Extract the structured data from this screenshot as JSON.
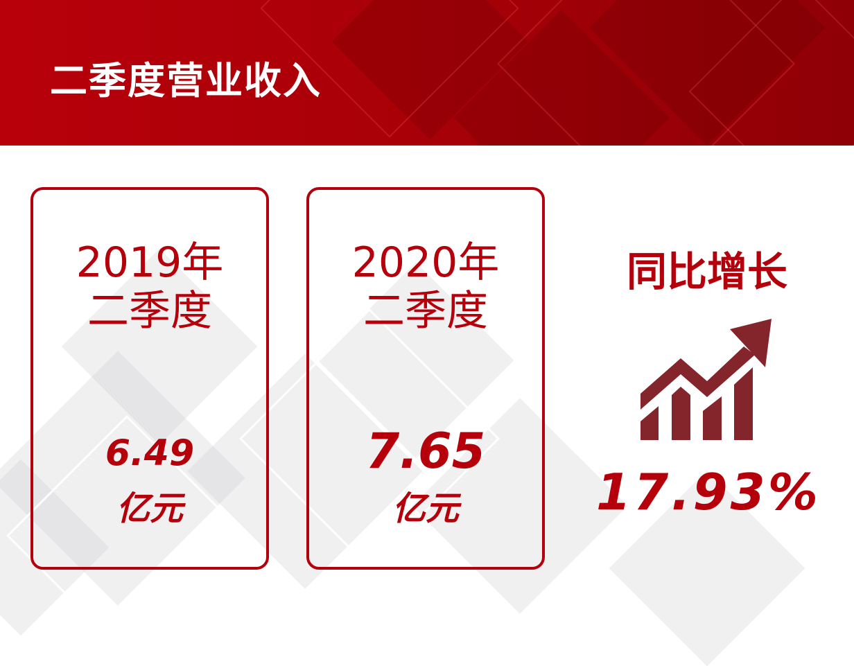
{
  "header": {
    "title": "二季度营业收入"
  },
  "cards": [
    {
      "year": "2019年",
      "quarter": "二季度",
      "value": "6.49",
      "unit": "亿元"
    },
    {
      "year": "2020年",
      "quarter": "二季度",
      "value": "7.65",
      "unit": "亿元"
    }
  ],
  "growth": {
    "label": "同比增长",
    "value": "17.93%",
    "icon": "trending-up-bar-chart-icon"
  },
  "colors": {
    "brand_red": "#b5000b",
    "icon_red": "#83252a"
  }
}
